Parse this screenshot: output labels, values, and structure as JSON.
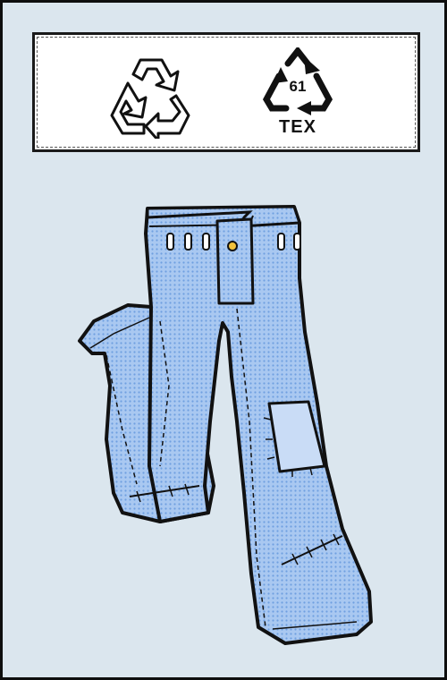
{
  "recycle_label": {
    "recycle_symbol": "recycle-icon",
    "textile_symbol": {
      "code": "61",
      "text": "TEX"
    }
  },
  "illustration": {
    "subject": "jeans-icon",
    "colors": {
      "background": "#dbe6ee",
      "denim": "#a9c8f1",
      "denim_dots": "#6f9fe0",
      "patch": "#c9dcf6",
      "outline": "#111111",
      "rivet": "#f2c23b"
    }
  }
}
